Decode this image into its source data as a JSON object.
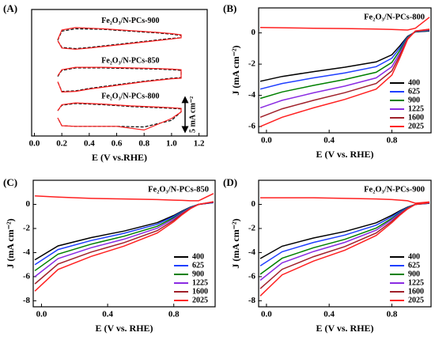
{
  "chart_data": [
    {
      "type": "cv",
      "panel_label": "(A)",
      "xlabel": "E (V vs.RHE)",
      "xlim": [
        -0.02,
        1.26
      ],
      "ylim": [
        0,
        21
      ],
      "xticks": [
        {
          "value": 0,
          "label": "0.0"
        },
        {
          "value": 0.2,
          "label": "0.2"
        },
        {
          "value": 0.4,
          "label": "0.4"
        },
        {
          "value": 0.6,
          "label": "0.6"
        },
        {
          "value": 0.8,
          "label": "0.8"
        },
        {
          "value": 1.0,
          "label": "1.0"
        },
        {
          "value": 1.2,
          "label": "1.2"
        }
      ],
      "dashed_color": "#000000",
      "solid_color": "#ff2020",
      "scale_bar": {
        "label": "5 mA cm⁻²",
        "value": 5
      },
      "curves": [
        {
          "label": "Fe₂O₃/N-PCs-900",
          "x": [
            0.17,
            0.2,
            0.3,
            0.5,
            0.7,
            0.9,
            1.0,
            1.07,
            1.07,
            1.0,
            0.8,
            0.6,
            0.4,
            0.3,
            0.2,
            0.17
          ],
          "dashed": [
            15.9,
            17.4,
            17.8,
            17.7,
            17.4,
            17.1,
            16.9,
            16.7,
            16.3,
            16.2,
            15.7,
            15.2,
            14.7,
            14.5,
            14.7,
            15.8
          ],
          "solid": [
            16.0,
            17.6,
            18.0,
            17.8,
            17.5,
            17.2,
            17.0,
            16.8,
            16.3,
            16.1,
            15.6,
            15.1,
            14.6,
            14.4,
            14.6,
            15.8
          ]
        },
        {
          "label": "Fe₂O₃/N-PCs-850",
          "x": [
            0.17,
            0.2,
            0.3,
            0.5,
            0.7,
            0.9,
            1.0,
            1.07,
            1.07,
            1.0,
            0.8,
            0.6,
            0.4,
            0.3,
            0.2,
            0.17
          ],
          "dashed": [
            9.9,
            10.9,
            11.3,
            11.3,
            11.2,
            11.1,
            11.0,
            10.9,
            9.7,
            9.6,
            9.1,
            8.5,
            7.9,
            7.5,
            7.4,
            9.0
          ],
          "solid": [
            10.0,
            11.0,
            11.4,
            11.4,
            11.3,
            11.2,
            11.1,
            11.0,
            9.6,
            9.5,
            9.0,
            8.4,
            7.8,
            7.4,
            7.3,
            9.0
          ]
        },
        {
          "label": "Fe₂O₃/N-PCs-800",
          "x": [
            0.17,
            0.2,
            0.3,
            0.5,
            0.7,
            0.9,
            1.0,
            1.07,
            1.07,
            1.0,
            0.8,
            0.6,
            0.4,
            0.3,
            0.2,
            0.17
          ],
          "dashed": [
            4.2,
            5.1,
            5.4,
            5.2,
            4.9,
            4.7,
            4.6,
            4.5,
            4.0,
            2.6,
            1.5,
            1.6,
            1.6,
            1.6,
            1.7,
            3.0
          ],
          "solid": [
            4.2,
            5.2,
            5.5,
            5.3,
            5.0,
            4.8,
            4.7,
            4.6,
            4.0,
            2.9,
            1.0,
            1.6,
            1.6,
            1.6,
            1.7,
            3.0
          ]
        }
      ]
    },
    {
      "type": "line",
      "panel_label": "(B)",
      "title": "Fe₂O₃/N-PCs-800",
      "xlabel": "E (V vs. RHE)",
      "ylabel": "J (mA cm⁻²)",
      "xlim": [
        -0.05,
        1.05
      ],
      "ylim": [
        -6.4,
        1.6
      ],
      "xticks": [
        {
          "value": 0,
          "label": "0.0"
        },
        {
          "value": 0.4,
          "label": "0.4"
        },
        {
          "value": 0.8,
          "label": "0.8"
        }
      ],
      "yticks": [
        -6,
        -4,
        -2,
        0
      ],
      "legend": "lower right",
      "x": [
        -0.04,
        0.1,
        0.3,
        0.5,
        0.7,
        0.8,
        0.85,
        0.9,
        0.95,
        1.04
      ],
      "upper_trace": {
        "color": "#ff2020",
        "values": [
          0.35,
          0.33,
          0.3,
          0.28,
          0.25,
          0.22,
          0.2,
          0.18,
          0.3,
          1.0
        ]
      },
      "series": [
        {
          "name": "400",
          "color": "#000000",
          "values": [
            -3.1,
            -2.79,
            -2.48,
            -2.2,
            -1.86,
            -1.4,
            -0.84,
            -0.22,
            0.06,
            0.12
          ]
        },
        {
          "name": "625",
          "color": "#1f3fff",
          "values": [
            -3.6,
            -3.24,
            -2.88,
            -2.56,
            -2.16,
            -1.62,
            -0.97,
            -0.25,
            0.07,
            0.14
          ]
        },
        {
          "name": "900",
          "color": "#008000",
          "values": [
            -4.2,
            -3.78,
            -3.36,
            -2.98,
            -2.52,
            -1.89,
            -1.13,
            -0.29,
            0.08,
            0.17
          ]
        },
        {
          "name": "1225",
          "color": "#8a2be2",
          "values": [
            -4.8,
            -4.32,
            -3.84,
            -3.41,
            -2.88,
            -2.16,
            -1.3,
            -0.34,
            0.1,
            0.19
          ]
        },
        {
          "name": "1600",
          "color": "#a0202a",
          "values": [
            -5.4,
            -4.86,
            -4.32,
            -3.83,
            -3.24,
            -2.43,
            -1.46,
            -0.38,
            0.11,
            0.22
          ]
        },
        {
          "name": "2025",
          "color": "#ff2020",
          "values": [
            -6.0,
            -5.4,
            -4.8,
            -4.26,
            -3.6,
            -2.7,
            -1.62,
            -0.42,
            0.12,
            0.24
          ]
        }
      ]
    },
    {
      "type": "line",
      "panel_label": "(C)",
      "title": "Fe₂O₃/N-PCs-850",
      "xlabel": "E (V vs. RHE)",
      "ylabel": "J (mA cm⁻²)",
      "xlim": [
        -0.05,
        1.05
      ],
      "ylim": [
        -8.5,
        2
      ],
      "xticks": [
        {
          "value": 0,
          "label": "0.0"
        },
        {
          "value": 0.4,
          "label": "0.4"
        },
        {
          "value": 0.8,
          "label": "0.8"
        }
      ],
      "yticks": [
        -8,
        -6,
        -4,
        -2,
        0
      ],
      "legend": "lower right",
      "x": [
        -0.04,
        0.1,
        0.3,
        0.5,
        0.7,
        0.8,
        0.85,
        0.9,
        0.95,
        1.04
      ],
      "upper_trace": {
        "color": "#ff2020",
        "values": [
          0.7,
          0.6,
          0.5,
          0.45,
          0.4,
          0.35,
          0.33,
          0.3,
          0.3,
          0.9
        ]
      },
      "series": [
        {
          "name": "400",
          "color": "#000000",
          "values": [
            -4.6,
            -3.45,
            -2.76,
            -2.21,
            -1.52,
            -0.92,
            -0.55,
            -0.23,
            0,
            0.14
          ]
        },
        {
          "name": "625",
          "color": "#1f3fff",
          "values": [
            -5.0,
            -3.75,
            -3.0,
            -2.4,
            -1.65,
            -1.0,
            -0.6,
            -0.25,
            0,
            0.15
          ]
        },
        {
          "name": "900",
          "color": "#008000",
          "values": [
            -5.5,
            -4.13,
            -3.3,
            -2.64,
            -1.82,
            -1.1,
            -0.66,
            -0.28,
            0,
            0.17
          ]
        },
        {
          "name": "1225",
          "color": "#8a2be2",
          "values": [
            -6.0,
            -4.5,
            -3.6,
            -2.88,
            -1.98,
            -1.2,
            -0.72,
            -0.3,
            0,
            0.18
          ]
        },
        {
          "name": "1600",
          "color": "#a0202a",
          "values": [
            -6.6,
            -4.95,
            -3.96,
            -3.17,
            -2.18,
            -1.32,
            -0.79,
            -0.33,
            0,
            0.2
          ]
        },
        {
          "name": "2025",
          "color": "#ff2020",
          "values": [
            -7.2,
            -5.4,
            -4.32,
            -3.46,
            -2.38,
            -1.44,
            -0.86,
            -0.36,
            0,
            0.22
          ]
        }
      ]
    },
    {
      "type": "line",
      "panel_label": "(D)",
      "title": "Fe₂O₃/N-PCs-900",
      "xlabel": "E (V vs. RHE)",
      "ylabel": "J (mA cm⁻²)",
      "xlim": [
        -0.05,
        1.05
      ],
      "ylim": [
        -8.5,
        2
      ],
      "xticks": [
        {
          "value": 0,
          "label": "0.0"
        },
        {
          "value": 0.4,
          "label": "0.4"
        },
        {
          "value": 0.8,
          "label": "0.8"
        }
      ],
      "yticks": [
        -8,
        -6,
        -4,
        -2,
        0
      ],
      "legend": "lower right",
      "x": [
        -0.04,
        0.1,
        0.3,
        0.5,
        0.7,
        0.8,
        0.85,
        0.9,
        0.95,
        1.04
      ],
      "upper_trace": {
        "color": "#ff2020",
        "values": [
          0.55,
          0.55,
          0.55,
          0.5,
          0.45,
          0.4,
          0.35,
          0.3,
          0.1,
          0.2
        ]
      },
      "series": [
        {
          "name": "400",
          "color": "#000000",
          "values": [
            -4.5,
            -3.47,
            -2.79,
            -2.25,
            -1.53,
            -0.9,
            -0.54,
            -0.23,
            0,
            0.09
          ]
        },
        {
          "name": "625",
          "color": "#1f3fff",
          "values": [
            -5.1,
            -3.93,
            -3.16,
            -2.55,
            -1.73,
            -1.02,
            -0.61,
            -0.26,
            0,
            0.1
          ]
        },
        {
          "name": "900",
          "color": "#008000",
          "values": [
            -5.8,
            -4.47,
            -3.6,
            -2.9,
            -1.97,
            -1.16,
            -0.7,
            -0.29,
            0,
            0.12
          ]
        },
        {
          "name": "1225",
          "color": "#8a2be2",
          "values": [
            -6.3,
            -4.85,
            -3.91,
            -3.15,
            -2.14,
            -1.26,
            -0.76,
            -0.32,
            0,
            0.13
          ]
        },
        {
          "name": "1600",
          "color": "#a0202a",
          "values": [
            -7.0,
            -5.39,
            -4.34,
            -3.5,
            -2.38,
            -1.4,
            -0.84,
            -0.35,
            0,
            0.14
          ]
        },
        {
          "name": "2025",
          "color": "#ff2020",
          "values": [
            -7.6,
            -5.85,
            -4.71,
            -3.8,
            -2.58,
            -1.52,
            -0.91,
            -0.38,
            0,
            0.15
          ]
        }
      ]
    }
  ]
}
